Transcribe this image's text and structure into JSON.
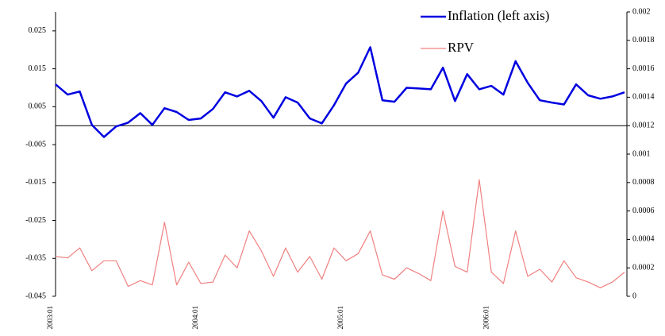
{
  "chart_data": {
    "type": "line",
    "categories": [
      "2003:01",
      null,
      null,
      null,
      null,
      null,
      null,
      null,
      null,
      null,
      null,
      null,
      "2004:01",
      null,
      null,
      null,
      null,
      null,
      null,
      null,
      null,
      null,
      null,
      null,
      "2005:01",
      null,
      null,
      null,
      null,
      null,
      null,
      null,
      null,
      null,
      null,
      null,
      "2006:01",
      null,
      null,
      null,
      null,
      null,
      null,
      null,
      null,
      null,
      null,
      null
    ],
    "series": [
      {
        "name": "Inflation (left axis)",
        "color": "#0000e0",
        "values": [
          0.0109,
          0.0082,
          0.009,
          0.0002,
          -0.003,
          -0.0002,
          0.0008,
          0.0033,
          0.0002,
          0.0046,
          0.0036,
          0.0015,
          0.0019,
          0.0044,
          0.0088,
          0.0077,
          0.0092,
          0.0065,
          0.0021,
          0.0075,
          0.0061,
          0.0019,
          0.0006,
          0.0054,
          0.0111,
          0.014,
          0.0207,
          0.0067,
          0.0063,
          0.01,
          0.0098,
          0.0096,
          0.0153,
          0.0065,
          0.0136,
          0.0096,
          0.0105,
          0.0082,
          0.017,
          0.0113,
          0.0067,
          0.0061,
          0.0056,
          0.0109,
          0.008,
          0.0071,
          0.0077,
          0.0088
        ]
      },
      {
        "name": "RPV",
        "color": "#f08080",
        "axis": "y2",
        "values": [
          0.00028,
          0.00027,
          0.00034,
          0.00018,
          0.00025,
          0.00025,
          7e-05,
          0.00011,
          8e-05,
          0.00052,
          8e-05,
          0.00024,
          9e-05,
          0.0001,
          0.00029,
          0.0002,
          0.00046,
          0.00032,
          0.00014,
          0.00034,
          0.00017,
          0.00028,
          0.00012,
          0.00034,
          0.00025,
          0.0003,
          0.00046,
          0.00015,
          0.00012,
          0.0002,
          0.00016,
          0.00011,
          0.0006,
          0.00021,
          0.00017,
          0.00082,
          0.00017,
          9e-05,
          0.00046,
          0.00014,
          0.00019,
          0.0001,
          0.00025,
          0.00013,
          0.0001,
          6e-05,
          0.0001,
          0.00017
        ]
      }
    ],
    "ylim": [
      -0.045,
      0.03
    ],
    "yticks": [
      -0.045,
      -0.035,
      -0.025,
      -0.015,
      -0.005,
      0.005,
      0.015,
      0.025
    ],
    "y2lim": [
      0,
      0.002
    ],
    "y2ticks": [
      0,
      0.0002,
      0.0004,
      0.0006,
      0.0008,
      0.001,
      0.0012,
      0.0014,
      0.0016,
      0.0018,
      0.002
    ],
    "legend": "upper right"
  }
}
